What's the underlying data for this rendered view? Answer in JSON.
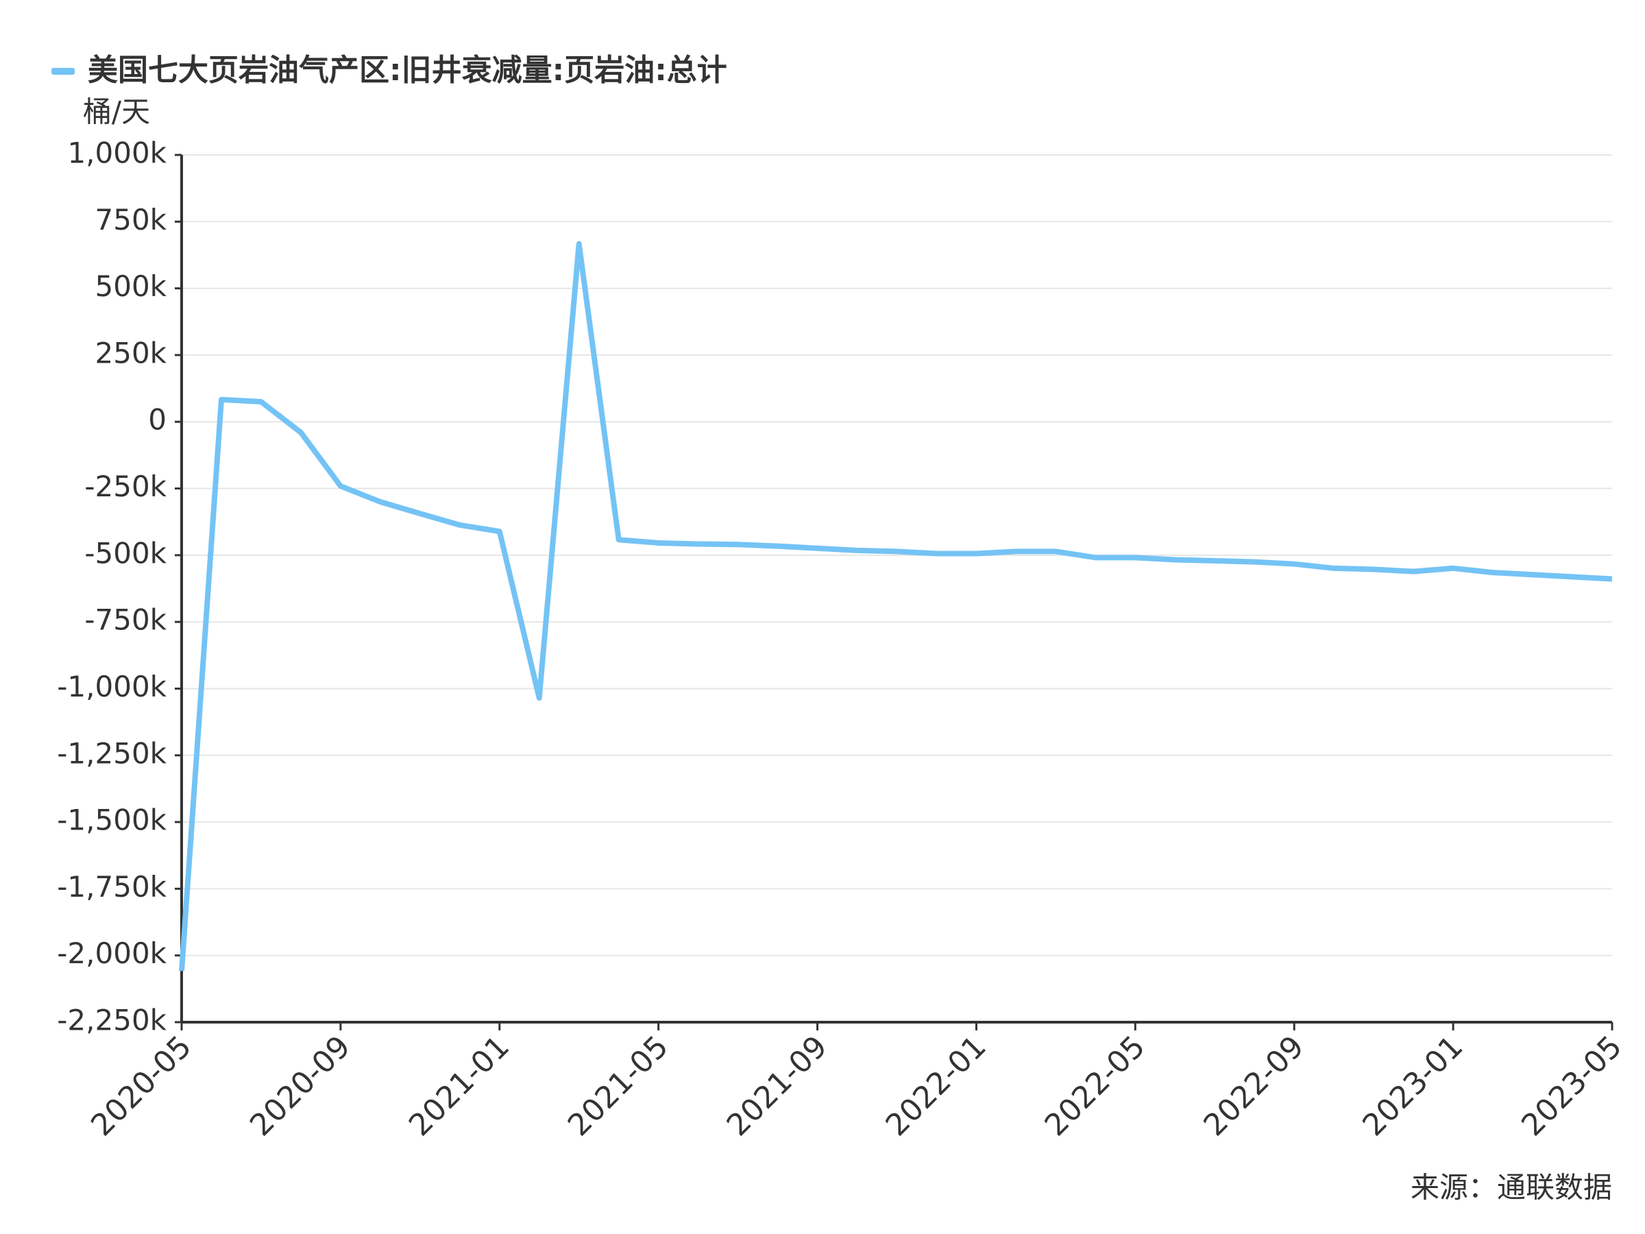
{
  "chart_data": {
    "type": "line",
    "x_axis_unit_label": "桶/天",
    "categories": [
      "2020-05",
      null,
      null,
      null,
      "2020-09",
      null,
      null,
      null,
      "2021-01",
      null,
      null,
      null,
      "2021-05",
      null,
      null,
      null,
      "2021-09",
      null,
      null,
      null,
      "2022-01",
      null,
      null,
      null,
      "2022-05",
      null,
      null,
      null,
      "2022-09",
      null,
      null,
      null,
      "2023-01",
      null,
      null,
      null,
      "2023-05"
    ],
    "series": [
      {
        "name": "美国七大页岩油气产区:旧井衰减量:页岩油:总计",
        "color": "#74c3f5",
        "values": [
          -2058000,
          83000,
          75000,
          -40000,
          -241000,
          -300000,
          -344000,
          -387000,
          -411000,
          -1035000,
          667000,
          -442000,
          -454000,
          -458000,
          -460000,
          -466000,
          -474000,
          -482000,
          -486000,
          -494000,
          -494000,
          -486000,
          -486000,
          -509000,
          -509000,
          -517000,
          -521000,
          -525000,
          -533000,
          -549000,
          -553000,
          -561000,
          -549000,
          -565000,
          -573000,
          -581000,
          -589000
        ]
      }
    ],
    "ylim": [
      -2250000,
      1000000
    ],
    "yticks": [
      {
        "value": -2250000,
        "label": "-2,250k"
      },
      {
        "value": -2000000,
        "label": "-2,000k"
      },
      {
        "value": -1750000,
        "label": "-1,750k"
      },
      {
        "value": -1500000,
        "label": "-1,500k"
      },
      {
        "value": -1250000,
        "label": "-1,250k"
      },
      {
        "value": -1000000,
        "label": "-1,000k"
      },
      {
        "value": -750000,
        "label": "-750k"
      },
      {
        "value": -500000,
        "label": "-500k"
      },
      {
        "value": -250000,
        "label": "-250k"
      },
      0,
      {
        "value": 250000,
        "label": "250k"
      },
      {
        "value": 500000,
        "label": "500k"
      },
      {
        "value": 750000,
        "label": "750k"
      },
      {
        "value": 1000000,
        "label": "1,000k"
      }
    ],
    "grid": true,
    "legend": "top-left",
    "source": "来源：通联数据"
  }
}
